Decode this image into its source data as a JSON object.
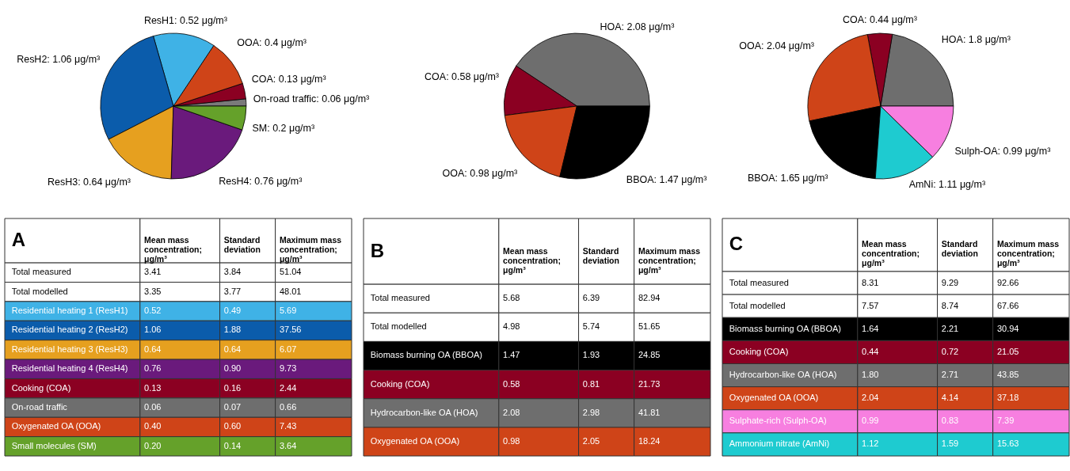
{
  "chart_data": [
    {
      "type": "pie",
      "categories": [
        "On-road traffic",
        "COA",
        "OOA",
        "ResH1",
        "ResH2",
        "ResH3",
        "ResH4",
        "SM"
      ],
      "values": [
        0.06,
        0.13,
        0.4,
        0.52,
        1.06,
        0.64,
        0.76,
        0.2
      ],
      "value_labels": [
        "0.06 μg/m³",
        "0.13 μg/m³",
        "0.4 μg/m³",
        "0.52 μg/m³",
        "1.06 μg/m³",
        "0.64 μg/m³",
        "0.76 μg/m³",
        "0.2 μg/m³"
      ],
      "colors": [
        "#7a7a7a",
        "#8b0022",
        "#cf4418",
        "#3fb2e6",
        "#0b5cab",
        "#e6a01f",
        "#6a1a7c",
        "#65a12a"
      ]
    },
    {
      "type": "pie",
      "categories": [
        "HOA",
        "COA",
        "OOA",
        "BBOA"
      ],
      "values": [
        2.08,
        0.58,
        0.98,
        1.47
      ],
      "value_labels": [
        "2.08 μg/m³",
        "0.58 μg/m³",
        "0.98 μg/m³",
        "1.47 μg/m³"
      ],
      "colors": [
        "#6e6e6e",
        "#8b0022",
        "#cf4418",
        "#000000"
      ]
    },
    {
      "type": "pie",
      "categories": [
        "HOA",
        "COA",
        "OOA",
        "BBOA",
        "AmNi",
        "Sulph-OA"
      ],
      "values": [
        1.8,
        0.44,
        2.04,
        1.65,
        1.11,
        0.99
      ],
      "value_labels": [
        "1.8 μg/m³",
        "0.44 μg/m³",
        "2.04 μg/m³",
        "1.65 μg/m³",
        "1.11 μg/m³",
        "0.99 μg/m³"
      ],
      "colors": [
        "#6e6e6e",
        "#8b0022",
        "#cf4418",
        "#000000",
        "#1ecbd0",
        "#f77fe0"
      ]
    },
    {
      "type": "other",
      "title": "A",
      "annotations": [
        "Mean mass concentration; μg/m³",
        "Standard deviation",
        "Maximum mass concentration; μg/m³"
      ],
      "categories": [
        "Total measured",
        "Total modelled",
        "Residential heating 1 (ResH1)",
        "Residential heating 2 (ResH2)",
        "Residential heating 3 (ResH3)",
        "Residential heating 4 (ResH4)",
        "Cooking (COA)",
        "On-road traffic",
        "Oxygenated OA (OOA)",
        "Small molecules (SM)"
      ],
      "cell_labels": [
        [
          "3.41",
          "3.84",
          "51.04"
        ],
        [
          "3.35",
          "3.77",
          "48.01"
        ],
        [
          "0.52",
          "0.49",
          "5.69"
        ],
        [
          "1.06",
          "1.88",
          "37.56"
        ],
        [
          "0.64",
          "0.64",
          "6.07"
        ],
        [
          "0.76",
          "0.90",
          "9.73"
        ],
        [
          "0.13",
          "0.16",
          "2.44"
        ],
        [
          "0.06",
          "0.07",
          "0.66"
        ],
        [
          "0.40",
          "0.60",
          "7.43"
        ],
        [
          "0.20",
          "0.14",
          "3.64"
        ]
      ],
      "colors": [
        "#ffffff",
        "#ffffff",
        "#3fb2e6",
        "#0b5cab",
        "#e6a01f",
        "#6a1a7c",
        "#8b0022",
        "#6e6e6e",
        "#cf4418",
        "#65a12a"
      ]
    },
    {
      "type": "other",
      "title": "B",
      "annotations": [
        "Mean mass concentration; μg/m³",
        "Standard deviation",
        "Maximum mass concentration; μg/m³"
      ],
      "categories": [
        "Total measured",
        "Total modelled",
        "Biomass burning OA (BBOA)",
        "Cooking (COA)",
        "Hydrocarbon-like OA (HOA)",
        "Oxygenated OA (OOA)"
      ],
      "cell_labels": [
        [
          "5.68",
          "6.39",
          "82.94"
        ],
        [
          "4.98",
          "5.74",
          "51.65"
        ],
        [
          "1.47",
          "1.93",
          "24.85"
        ],
        [
          "0.58",
          "0.81",
          "21.73"
        ],
        [
          "2.08",
          "2.98",
          "41.81"
        ],
        [
          "0.98",
          "2.05",
          "18.24"
        ]
      ],
      "colors": [
        "#ffffff",
        "#ffffff",
        "#000000",
        "#8b0022",
        "#6e6e6e",
        "#cf4418"
      ]
    },
    {
      "type": "other",
      "title": "C",
      "annotations": [
        "Mean mass concentration; μg/m³",
        "Standard deviation",
        "Maximum mass concentration; μg/m³"
      ],
      "categories": [
        "Total measured",
        "Total modelled",
        "Biomass burning OA (BBOA)",
        "Cooking (COA)",
        "Hydrocarbon-like OA (HOA)",
        "Oxygenated OA (OOA)",
        "Sulphate-rich (Sulph-OA)",
        "Ammonium nitrate (AmNi)"
      ],
      "cell_labels": [
        [
          "8.31",
          "9.29",
          "92.66"
        ],
        [
          "7.57",
          "8.74",
          "67.66"
        ],
        [
          "1.64",
          "2.21",
          "30.94"
        ],
        [
          "0.44",
          "0.72",
          "21.05"
        ],
        [
          "1.80",
          "2.71",
          "43.85"
        ],
        [
          "2.04",
          "4.14",
          "37.18"
        ],
        [
          "0.99",
          "0.83",
          "7.39"
        ],
        [
          "1.12",
          "1.59",
          "15.63"
        ]
      ],
      "colors": [
        "#ffffff",
        "#ffffff",
        "#000000",
        "#8b0022",
        "#6e6e6e",
        "#cf4418",
        "#f77fe0",
        "#1ecbd0"
      ]
    }
  ]
}
